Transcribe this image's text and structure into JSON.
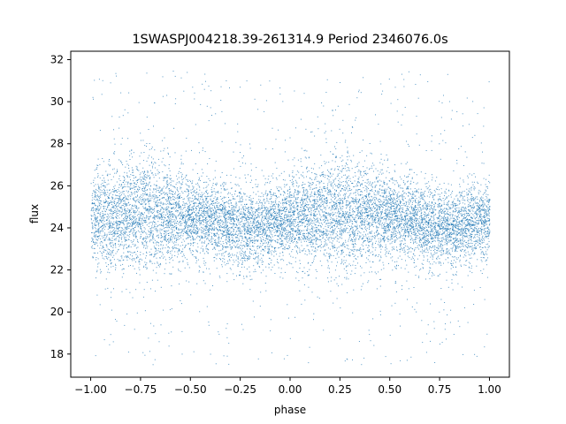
{
  "chart_data": {
    "type": "scatter",
    "title": "1SWASPJ004218.39-261314.9 Period 2346076.0s",
    "xlabel": "phase",
    "ylabel": "flux",
    "xlim": [
      -1.1,
      1.1
    ],
    "ylim": [
      16.9,
      32.4
    ],
    "xticks": [
      -1.0,
      -0.75,
      -0.5,
      -0.25,
      0.0,
      0.25,
      0.5,
      0.75,
      1.0
    ],
    "xtick_labels": [
      "−1.00",
      "−0.75",
      "−0.50",
      "−0.25",
      "0.00",
      "0.25",
      "0.50",
      "0.75",
      "1.00"
    ],
    "yticks": [
      18,
      20,
      22,
      24,
      26,
      28,
      30,
      32
    ],
    "ytick_labels": [
      "18",
      "20",
      "22",
      "24",
      "26",
      "28",
      "30",
      "32"
    ],
    "grid": false,
    "legend": "none",
    "point_color": "#1f77b4",
    "series": [
      {
        "x_range": [
          -1.0,
          1.0
        ],
        "y_range": [
          17.5,
          31.5
        ],
        "mean_flux_profile": {
          "x": [
            -1.0,
            -0.75,
            -0.5,
            -0.25,
            0.0,
            0.25,
            0.5,
            0.75,
            1.0
          ],
          "y": [
            24.4,
            24.8,
            24.6,
            24.0,
            24.4,
            24.8,
            24.6,
            24.0,
            24.4
          ]
        }
      }
    ]
  }
}
